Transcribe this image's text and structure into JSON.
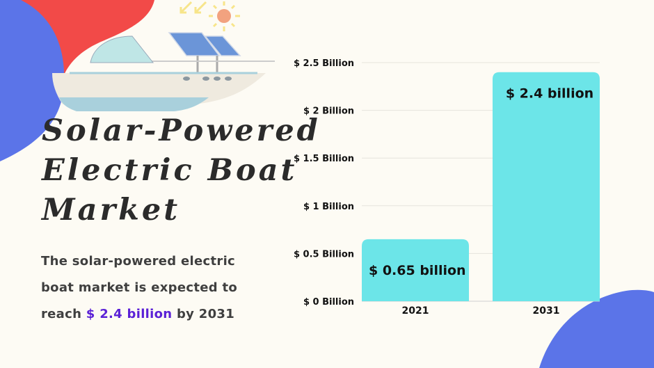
{
  "title_lines": [
    "Solar-Powered",
    "Electric Boat",
    "Market"
  ],
  "description": {
    "prefix": "The solar-powered electric boat market is expected to reach",
    "highlight": "$ 2.4 billion",
    "suffix": "by 2031"
  },
  "colors": {
    "bar": "#6ce5e8",
    "highlight": "#5b21d6",
    "blob_blue": "#5b74e8",
    "blob_red": "#f24a48",
    "background": "#fdfbf4"
  },
  "chart_data": {
    "type": "bar",
    "title": "",
    "xlabel": "",
    "ylabel": "",
    "categories": [
      "2021",
      "2031"
    ],
    "values": [
      0.65,
      2.4
    ],
    "data_labels": [
      "$ 0.65 billion",
      "$ 2.4 billion"
    ],
    "ylim": [
      0,
      2.5
    ],
    "yticks": [
      0,
      0.5,
      1,
      1.5,
      2,
      2.5
    ],
    "ytick_labels": [
      "$ 0 Billion",
      "$ 0.5 Billion",
      "$ 1 Billion",
      "$ 1.5 Billion",
      "$ 2 Billion",
      "$ 2.5 Billion"
    ],
    "grid": true,
    "legend": "none"
  }
}
